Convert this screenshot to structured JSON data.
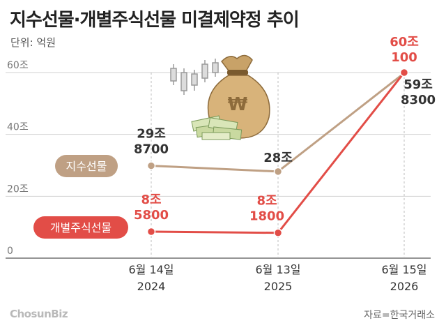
{
  "title": "지수선물·개별주식선물 미결제약정 추이",
  "unit": "단위: 억원",
  "source": "자료=한국거래소",
  "brand": "ChosunBiz",
  "colors": {
    "index": "#bfa084",
    "stock": "#e24d47",
    "grid": "#d2d2d2",
    "axis": "#555555"
  },
  "chart_data": {
    "type": "line",
    "categories": [
      [
        "6월 14일",
        "2024"
      ],
      [
        "6월 13일",
        "2025"
      ],
      [
        "6월 15일",
        "2026"
      ]
    ],
    "yticks": [
      {
        "value": 0,
        "label": "0"
      },
      {
        "value": 200000,
        "label": "20조"
      },
      {
        "value": 400000,
        "label": "40조"
      },
      {
        "value": 600000,
        "label": "60조"
      }
    ],
    "ylim": [
      0,
      600000
    ],
    "series": [
      {
        "name": "지수선물",
        "color": "#bfa084",
        "values": [
          298700,
          280000,
          598300
        ],
        "labels": [
          [
            "29조",
            "8700"
          ],
          [
            "28조"
          ],
          [
            "59조",
            "8300"
          ]
        ]
      },
      {
        "name": "개별주식선물",
        "color": "#e24d47",
        "values": [
          85800,
          81800,
          600100
        ],
        "labels": [
          [
            "8조",
            "5800"
          ],
          [
            "8조",
            "1800"
          ],
          [
            "60조",
            "100"
          ]
        ]
      }
    ]
  }
}
